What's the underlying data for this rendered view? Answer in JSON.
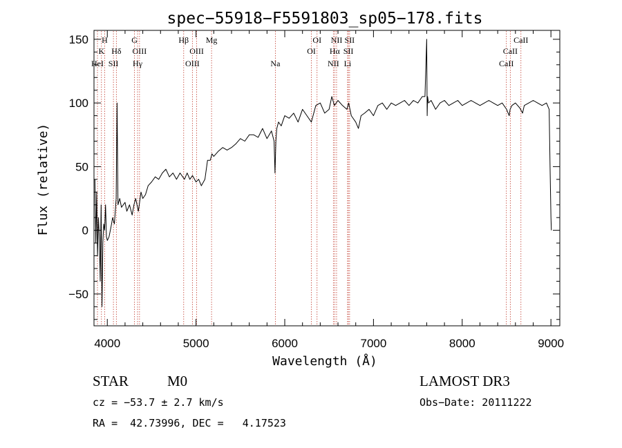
{
  "chart_data": {
    "type": "line",
    "title": "spec−55918−F5591803_sp05−178.fits",
    "xlabel": "Wavelength (Å)",
    "ylabel": "Flux (relative)",
    "xlim": [
      3850,
      9100
    ],
    "ylim": [
      -75,
      157
    ],
    "xticks": [
      4000,
      5000,
      6000,
      7000,
      8000,
      9000
    ],
    "xtick_labels": [
      "4000",
      "5000",
      "6000",
      "7000",
      "8000",
      "9000"
    ],
    "yticks": [
      -50,
      0,
      50,
      100,
      150
    ],
    "ytick_labels": [
      "−50",
      "0",
      "50",
      "100",
      "150"
    ],
    "grid": false,
    "series": [
      {
        "name": "flux",
        "x": [
          3860,
          3870,
          3880,
          3890,
          3900,
          3910,
          3920,
          3930,
          3940,
          3950,
          3960,
          3970,
          3980,
          3990,
          4000,
          4020,
          4040,
          4060,
          4080,
          4100,
          4110,
          4120,
          4140,
          4160,
          4180,
          4200,
          4220,
          4250,
          4280,
          4300,
          4320,
          4350,
          4380,
          4400,
          4430,
          4460,
          4500,
          4540,
          4580,
          4620,
          4660,
          4700,
          4740,
          4780,
          4820,
          4850,
          4870,
          4900,
          4930,
          4960,
          5000,
          5030,
          5060,
          5100,
          5130,
          5160,
          5180,
          5200,
          5250,
          5300,
          5350,
          5400,
          5450,
          5500,
          5550,
          5600,
          5650,
          5700,
          5750,
          5800,
          5850,
          5880,
          5890,
          5900,
          5910,
          5930,
          5960,
          6000,
          6050,
          6100,
          6150,
          6200,
          6250,
          6300,
          6350,
          6400,
          6450,
          6500,
          6530,
          6560,
          6580,
          6600,
          6650,
          6700,
          6720,
          6750,
          6800,
          6830,
          6860,
          6900,
          6950,
          7000,
          7050,
          7100,
          7150,
          7200,
          7250,
          7300,
          7350,
          7400,
          7450,
          7500,
          7550,
          7580,
          7600,
          7605,
          7610,
          7620,
          7650,
          7700,
          7750,
          7800,
          7850,
          7900,
          7950,
          8000,
          8050,
          8100,
          8150,
          8200,
          8250,
          8300,
          8350,
          8400,
          8450,
          8500,
          8530,
          8540,
          8560,
          8600,
          8650,
          8680,
          8700,
          8750,
          8800,
          8850,
          8900,
          8950,
          8980,
          8990,
          9000,
          9005
        ],
        "y": [
          40,
          -10,
          30,
          -20,
          10,
          -5,
          -40,
          20,
          -60,
          -10,
          5,
          0,
          20,
          -5,
          -8,
          -5,
          2,
          10,
          5,
          25,
          100,
          20,
          25,
          18,
          20,
          22,
          15,
          20,
          12,
          20,
          25,
          15,
          30,
          25,
          28,
          35,
          38,
          42,
          40,
          45,
          48,
          42,
          45,
          40,
          45,
          42,
          40,
          45,
          40,
          43,
          38,
          40,
          35,
          40,
          55,
          55,
          60,
          58,
          62,
          65,
          63,
          65,
          68,
          72,
          70,
          75,
          75,
          73,
          80,
          72,
          78,
          70,
          45,
          70,
          80,
          85,
          82,
          90,
          88,
          92,
          85,
          95,
          90,
          85,
          98,
          100,
          92,
          95,
          105,
          98,
          100,
          102,
          98,
          95,
          100,
          90,
          85,
          80,
          90,
          92,
          95,
          90,
          98,
          100,
          95,
          100,
          98,
          100,
          102,
          98,
          102,
          100,
          105,
          105,
          150,
          90,
          105,
          100,
          102,
          95,
          100,
          102,
          98,
          100,
          102,
          98,
          100,
          102,
          100,
          98,
          100,
          102,
          100,
          98,
          100,
          95,
          90,
          95,
          98,
          100,
          96,
          92,
          98,
          100,
          102,
          100,
          98,
          100,
          95,
          50,
          10,
          0
        ]
      }
    ],
    "line_markers": [
      {
        "name": "H",
        "wavelength": 3970,
        "row": 1
      },
      {
        "name": "K",
        "wavelength": 3934,
        "row": 2
      },
      {
        "name": "HeI",
        "wavelength": 3889,
        "row": 3
      },
      {
        "name": "SII",
        "wavelength": 4069,
        "row": 3
      },
      {
        "name": "Hδ",
        "wavelength": 4102,
        "row": 2
      },
      {
        "name": "G",
        "wavelength": 4306,
        "row": 1
      },
      {
        "name": "OIII",
        "wavelength": 4363,
        "row": 2
      },
      {
        "name": "Hγ",
        "wavelength": 4341,
        "row": 3
      },
      {
        "name": "Hβ",
        "wavelength": 4861,
        "row": 1
      },
      {
        "name": "OIII",
        "wavelength": 5007,
        "row": 2
      },
      {
        "name": "OIII",
        "wavelength": 4959,
        "row": 3
      },
      {
        "name": "Mg",
        "wavelength": 5175,
        "row": 1
      },
      {
        "name": "Na",
        "wavelength": 5894,
        "row": 3
      },
      {
        "name": "OI",
        "wavelength": 6364,
        "row": 1
      },
      {
        "name": "OI",
        "wavelength": 6300,
        "row": 2
      },
      {
        "name": "NII",
        "wavelength": 6584,
        "row": 1
      },
      {
        "name": "Hα",
        "wavelength": 6563,
        "row": 2
      },
      {
        "name": "NII",
        "wavelength": 6548,
        "row": 3
      },
      {
        "name": "SII",
        "wavelength": 6731,
        "row": 1
      },
      {
        "name": "SII",
        "wavelength": 6717,
        "row": 2
      },
      {
        "name": "Li",
        "wavelength": 6708,
        "row": 3
      },
      {
        "name": "CaII",
        "wavelength": 8662,
        "row": 1
      },
      {
        "name": "CaII",
        "wavelength": 8542,
        "row": 2
      },
      {
        "name": "CaII",
        "wavelength": 8498,
        "row": 3
      }
    ],
    "marker_color": "#c0392b",
    "line_color": "#000000"
  },
  "info": {
    "object_class": "STAR",
    "subclass": "M0",
    "survey": "LAMOST DR3",
    "cz": "cz = −53.7 ± 2.7 km/s",
    "obs_date": "Obs−Date: 20111222",
    "coords": "RA =  42.73996, DEC =   4.17523"
  }
}
